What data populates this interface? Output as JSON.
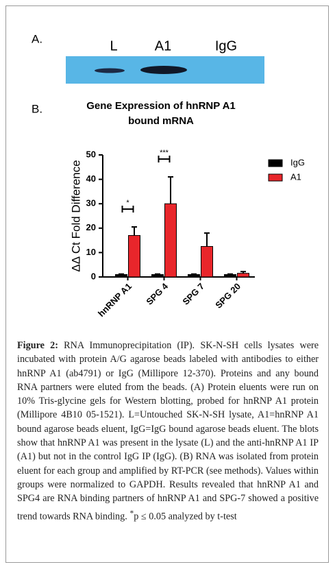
{
  "panel_a": {
    "label": "A.",
    "lanes": [
      "L",
      "A1",
      "IgG"
    ]
  },
  "chart_data": {
    "type": "bar",
    "label": "B.",
    "title": "Gene Expression of hnRNP A1 bound mRNA",
    "y_label": "ΔΔ Ct Fold Difference",
    "categories": [
      "hnRNP A1",
      "SPG 4",
      "SPG 7",
      "SPG 20"
    ],
    "series": [
      {
        "name": "IgG",
        "color": "#000000",
        "values": [
          1,
          1,
          1,
          1
        ],
        "errors": [
          0.2,
          0.2,
          0.2,
          0.2
        ]
      },
      {
        "name": "A1",
        "color": "#e8262b",
        "values": [
          17,
          30,
          12.5,
          1.5
        ],
        "errors": [
          3.5,
          11,
          5.5,
          0.7
        ]
      }
    ],
    "ylim": [
      0,
      50
    ],
    "yticks": [
      0,
      10,
      20,
      30,
      40,
      50
    ],
    "legend": "upper-right",
    "annotations": [
      {
        "text": "*",
        "category": "hnRNP A1"
      },
      {
        "text": "***",
        "category": "SPG 4"
      }
    ]
  },
  "caption": {
    "label": "Figure 2:",
    "title": "RNA Immunoprecipitation (IP).",
    "text": "SK-N-SH cells lysates were incubated with protein A/G agarose beads labeled with antibodies to either hnRNP A1 (ab4791) or IgG (Millipore 12-370). Proteins and any bound RNA partners were eluted from the beads. (A) Protein eluents were run on 10% Tris-glycine gels for Western blotting, probed for hnRNP A1 protein (Millipore 4B10 05-1521). L=Untouched SK-N-SH lysate, A1=hnRNP A1 bound agarose beads eluent, IgG=IgG bound agarose beads eluent. The blots show that hnRNP A1 was present in the lysate (L) and the anti-hnRNP A1 IP (A1) but not in the control IgG IP (IgG). (B) RNA was isolated from protein eluent for each group and amplified by RT-PCR (see methods). Values within groups were normalized to GAPDH. Results revealed that hnRNP A1 and SPG4 are RNA binding partners of hnRNP A1 and SPG-7 showed a positive trend towards RNA binding.",
    "footnote_mark": "*",
    "footnote": "p ≤ 0.05 analyzed by t-test"
  }
}
